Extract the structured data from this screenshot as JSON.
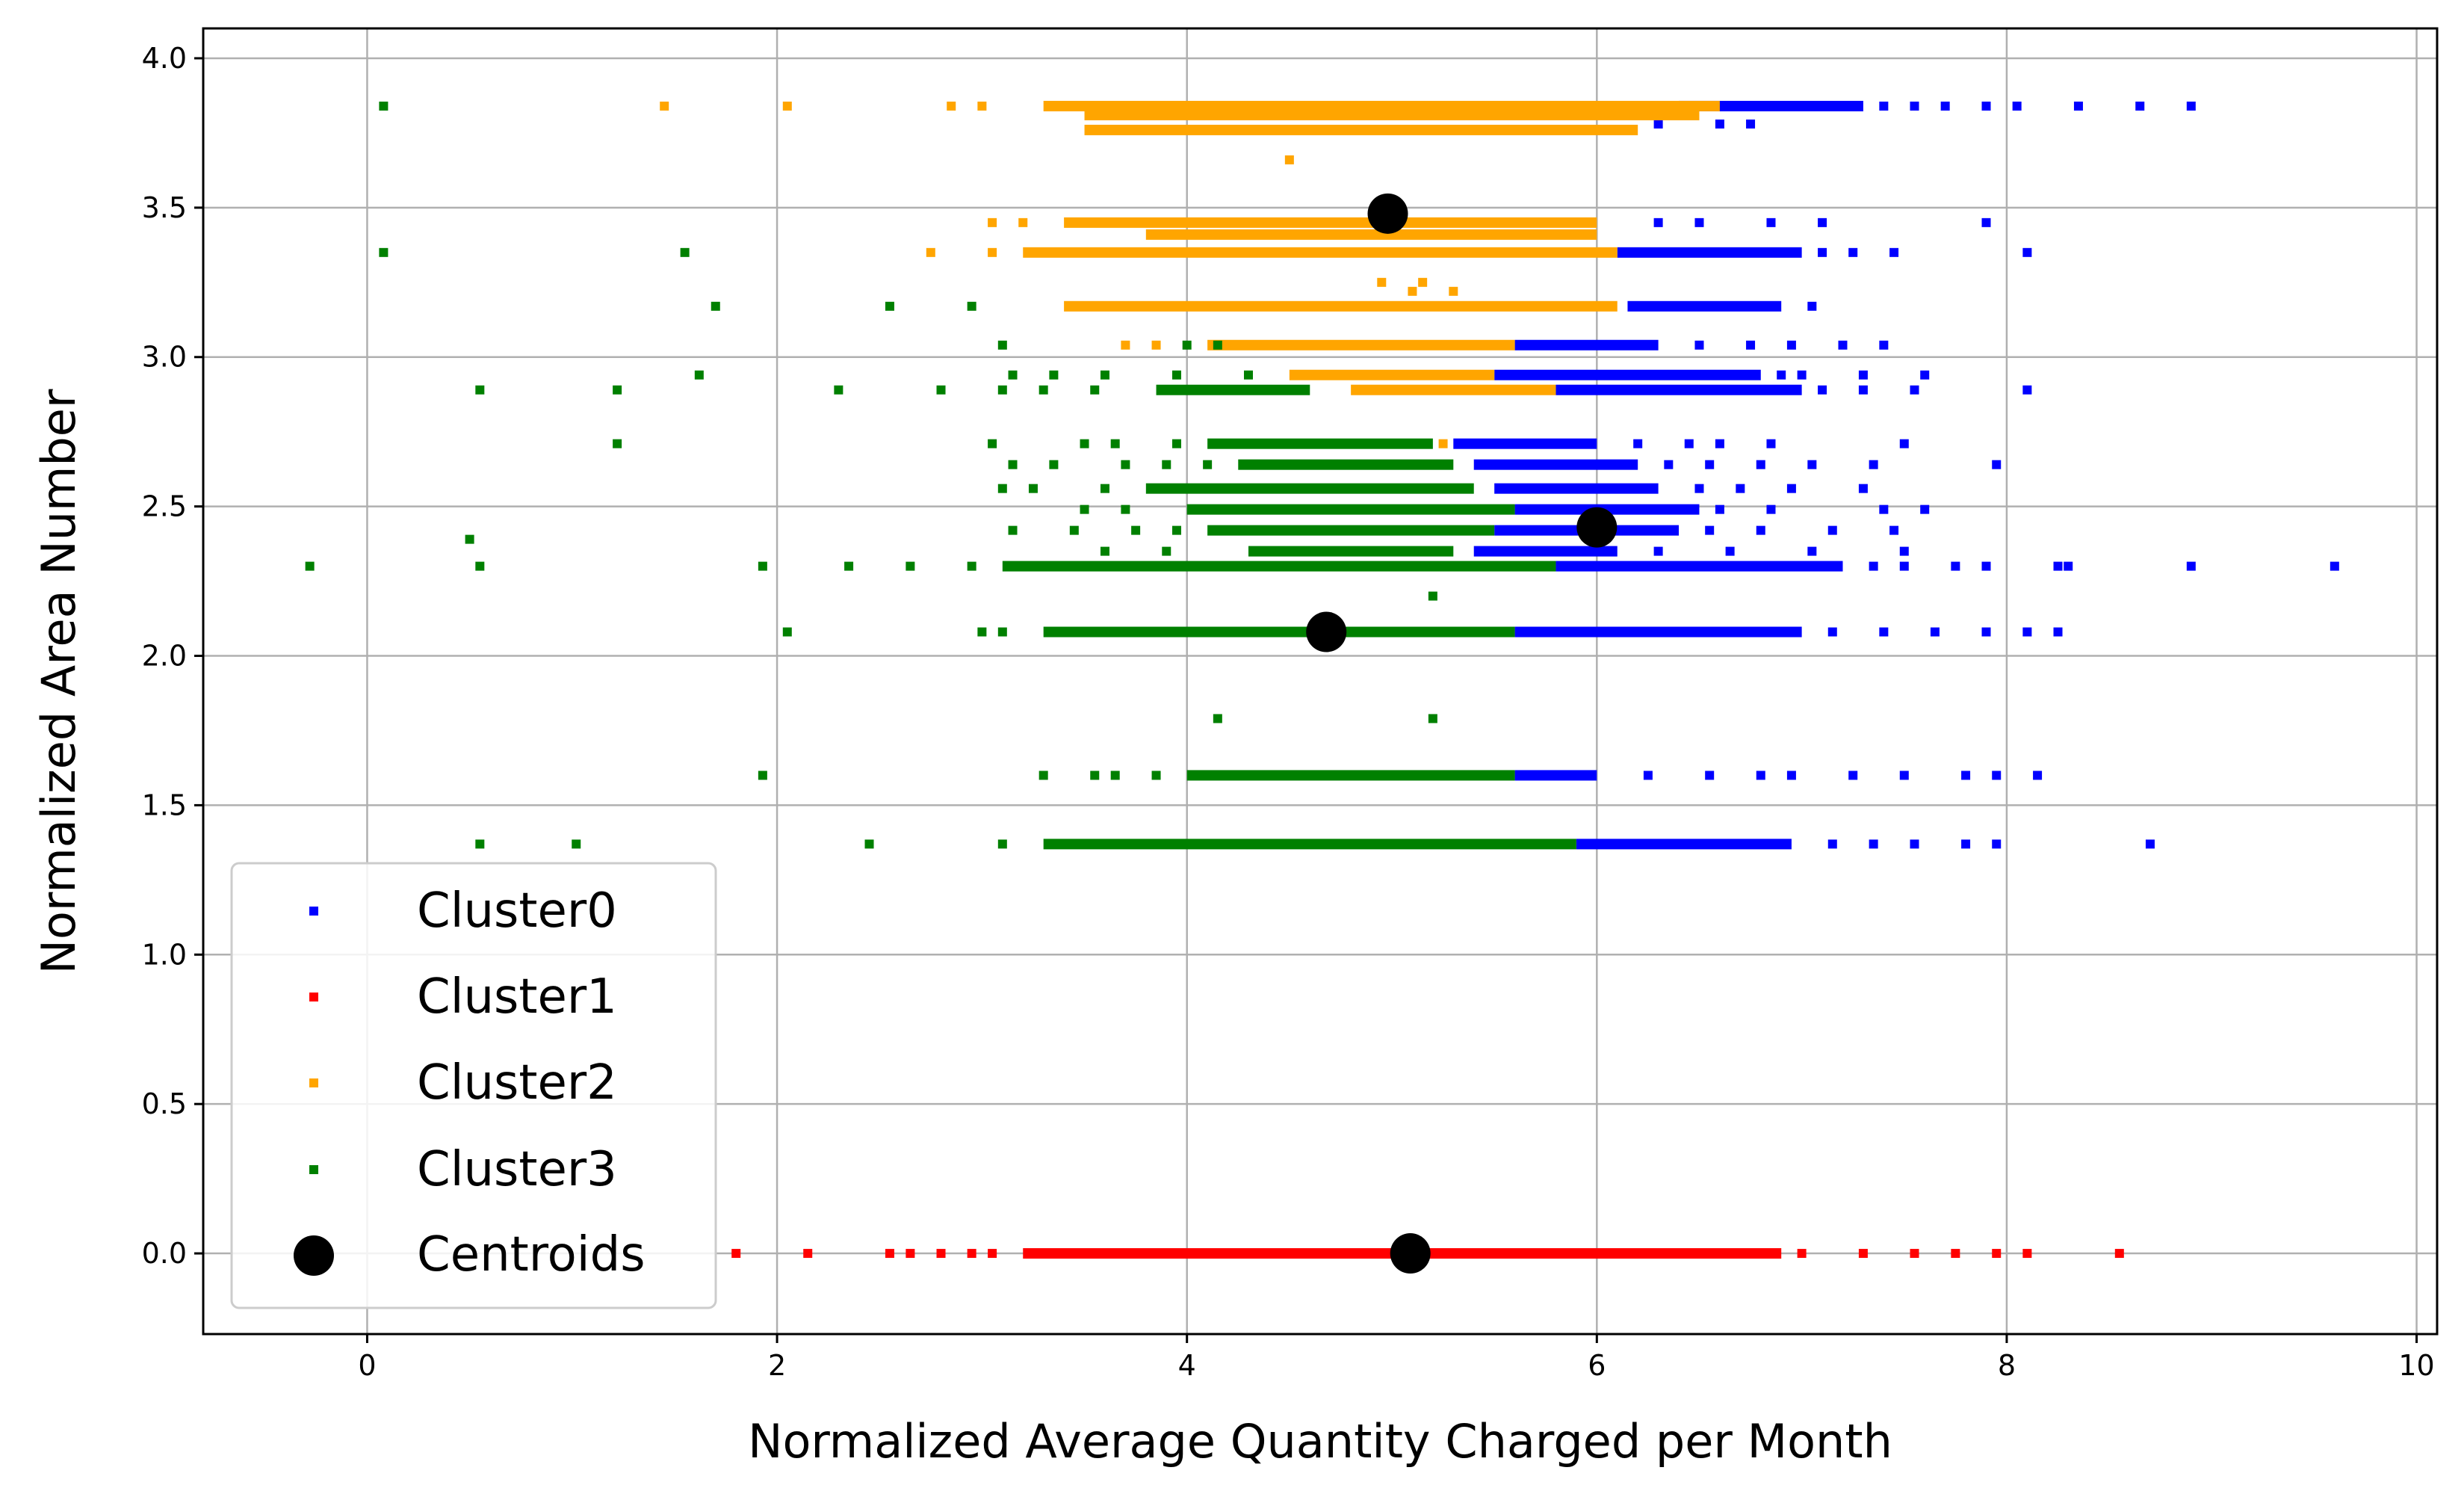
{
  "chart_data": {
    "type": "scatter",
    "title": "",
    "xlabel": "Normalized Average Quantity Charged per Month",
    "ylabel": "Normalized Area Number",
    "xlim": [
      -0.8,
      10.1
    ],
    "ylim": [
      -0.27,
      4.1
    ],
    "xticks": [
      0,
      2,
      4,
      6,
      8,
      10
    ],
    "xtick_labels": [
      "0",
      "2",
      "4",
      "6",
      "8",
      "10"
    ],
    "yticks": [
      0.0,
      0.5,
      1.0,
      1.5,
      2.0,
      2.5,
      3.0,
      3.5,
      4.0
    ],
    "ytick_labels": [
      "0.0",
      "0.5",
      "1.0",
      "1.5",
      "2.0",
      "2.5",
      "3.0",
      "3.5",
      "4.0"
    ],
    "grid": true,
    "legend_position": "lower-left",
    "series": [
      {
        "name": "Cluster0",
        "color": "#0000ff",
        "rows": [
          {
            "y": 3.84,
            "dense": [
              6.4,
              7.3
            ],
            "scatter": [
              7.4,
              7.55,
              7.7,
              7.9,
              8.05,
              8.35,
              8.65,
              8.9
            ]
          },
          {
            "y": 3.78,
            "dense": [],
            "scatter": [
              6.3,
              6.6,
              6.75
            ]
          },
          {
            "y": 3.45,
            "dense": [],
            "scatter": [
              6.3,
              6.5,
              6.85,
              7.1,
              7.9
            ]
          },
          {
            "y": 3.35,
            "dense": [
              6.1,
              7.0
            ],
            "scatter": [
              7.1,
              7.25,
              7.45,
              8.1
            ]
          },
          {
            "y": 3.17,
            "dense": [
              6.15,
              6.9
            ],
            "scatter": [
              7.05
            ]
          },
          {
            "y": 3.04,
            "dense": [
              5.6,
              6.3
            ],
            "scatter": [
              6.5,
              6.75,
              6.95,
              7.2,
              7.4
            ]
          },
          {
            "y": 2.94,
            "dense": [
              5.5,
              6.8
            ],
            "scatter": [
              6.9,
              7.0,
              7.3,
              7.6
            ]
          },
          {
            "y": 2.89,
            "dense": [
              5.8,
              7.0
            ],
            "scatter": [
              7.1,
              7.3,
              7.55,
              8.1
            ]
          },
          {
            "y": 2.71,
            "dense": [
              5.3,
              6.0
            ],
            "scatter": [
              6.2,
              6.45,
              6.6,
              6.85,
              7.5
            ]
          },
          {
            "y": 2.64,
            "dense": [
              5.4,
              6.2
            ],
            "scatter": [
              6.35,
              6.55,
              6.8,
              7.05,
              7.35,
              7.95
            ]
          },
          {
            "y": 2.56,
            "dense": [
              5.5,
              6.3
            ],
            "scatter": [
              6.5,
              6.7,
              6.95,
              7.3
            ]
          },
          {
            "y": 2.49,
            "dense": [
              5.6,
              6.5
            ],
            "scatter": [
              6.6,
              6.85,
              7.4,
              7.6
            ]
          },
          {
            "y": 2.42,
            "dense": [
              5.5,
              6.4
            ],
            "scatter": [
              6.55,
              6.8,
              7.15,
              7.45
            ]
          },
          {
            "y": 2.35,
            "dense": [
              5.4,
              6.1
            ],
            "scatter": [
              6.3,
              6.65,
              7.05,
              7.5
            ]
          },
          {
            "y": 2.3,
            "dense": [
              5.8,
              7.2
            ],
            "scatter": [
              7.35,
              7.5,
              7.75,
              7.9,
              8.25,
              8.3,
              8.9,
              9.6
            ]
          },
          {
            "y": 2.08,
            "dense": [
              5.6,
              7.0
            ],
            "scatter": [
              7.15,
              7.4,
              7.65,
              7.9,
              8.1,
              8.25
            ]
          },
          {
            "y": 1.6,
            "dense": [
              5.6,
              6.0
            ],
            "scatter": [
              6.25,
              6.55,
              6.8,
              6.95,
              7.25,
              7.5,
              7.8,
              7.95,
              8.15
            ]
          },
          {
            "y": 1.37,
            "dense": [
              5.9,
              6.95
            ],
            "scatter": [
              7.15,
              7.35,
              7.55,
              7.8,
              7.95,
              8.7
            ]
          }
        ]
      },
      {
        "name": "Cluster1",
        "color": "#ff0000",
        "rows": [
          {
            "y": 0.0,
            "dense": [
              3.2,
              6.9
            ],
            "scatter": [
              1.8,
              2.15,
              2.55,
              2.65,
              2.8,
              2.95,
              3.05,
              7.0,
              7.3,
              7.55,
              7.75,
              7.95,
              8.1,
              8.55
            ]
          }
        ]
      },
      {
        "name": "Cluster2",
        "color": "#ffa500",
        "rows": [
          {
            "y": 3.84,
            "dense": [
              3.3,
              6.6
            ],
            "scatter": [
              1.45,
              2.05,
              2.85,
              3.0
            ]
          },
          {
            "y": 3.81,
            "dense": [
              3.5,
              6.5
            ],
            "scatter": []
          },
          {
            "y": 3.76,
            "dense": [
              3.5,
              6.2
            ],
            "scatter": []
          },
          {
            "y": 3.66,
            "dense": [],
            "scatter": [
              4.5
            ]
          },
          {
            "y": 3.45,
            "dense": [
              3.4,
              6.0
            ],
            "scatter": [
              3.05,
              3.2
            ]
          },
          {
            "y": 3.41,
            "dense": [
              3.8,
              6.0
            ],
            "scatter": []
          },
          {
            "y": 3.35,
            "dense": [
              3.2,
              6.1
            ],
            "scatter": [
              2.75,
              3.05
            ]
          },
          {
            "y": 3.25,
            "dense": [],
            "scatter": [
              4.95,
              5.15
            ]
          },
          {
            "y": 3.22,
            "dense": [],
            "scatter": [
              5.1,
              5.3
            ]
          },
          {
            "y": 3.17,
            "dense": [
              3.4,
              6.1
            ],
            "scatter": []
          },
          {
            "y": 3.04,
            "dense": [
              4.1,
              5.6
            ],
            "scatter": [
              3.7,
              3.85
            ]
          },
          {
            "y": 2.94,
            "dense": [
              4.5,
              5.5
            ],
            "scatter": []
          },
          {
            "y": 2.89,
            "dense": [
              4.8,
              5.8
            ],
            "scatter": []
          },
          {
            "y": 2.71,
            "dense": [],
            "scatter": [
              5.15,
              5.25
            ]
          }
        ]
      },
      {
        "name": "Cluster3",
        "color": "#008000",
        "rows": [
          {
            "y": 3.84,
            "dense": [],
            "scatter": [
              0.08
            ]
          },
          {
            "y": 3.35,
            "dense": [],
            "scatter": [
              0.08,
              1.55
            ]
          },
          {
            "y": 3.17,
            "dense": [],
            "scatter": [
              1.7,
              2.55,
              2.95
            ]
          },
          {
            "y": 3.04,
            "dense": [],
            "scatter": [
              3.1,
              4.0,
              4.15
            ]
          },
          {
            "y": 2.94,
            "dense": [],
            "scatter": [
              1.62,
              3.15,
              3.35,
              3.6,
              3.95,
              4.3
            ]
          },
          {
            "y": 2.89,
            "dense": [
              3.85,
              4.6
            ],
            "scatter": [
              0.55,
              1.22,
              2.3,
              2.8,
              3.1,
              3.3,
              3.55
            ]
          },
          {
            "y": 2.71,
            "dense": [
              4.1,
              5.2
            ],
            "scatter": [
              1.22,
              3.05,
              3.5,
              3.65,
              3.95
            ]
          },
          {
            "y": 2.64,
            "dense": [
              4.25,
              5.3
            ],
            "scatter": [
              3.15,
              3.35,
              3.7,
              3.9,
              4.1
            ]
          },
          {
            "y": 2.56,
            "dense": [
              3.8,
              5.4
            ],
            "scatter": [
              3.1,
              3.25,
              3.6
            ]
          },
          {
            "y": 2.49,
            "dense": [
              4.0,
              5.6
            ],
            "scatter": [
              3.5,
              3.7
            ]
          },
          {
            "y": 2.42,
            "dense": [
              4.1,
              5.5
            ],
            "scatter": [
              3.15,
              3.45,
              3.75,
              3.95
            ]
          },
          {
            "y": 2.39,
            "dense": [],
            "scatter": [
              0.5
            ]
          },
          {
            "y": 2.35,
            "dense": [
              4.3,
              5.3
            ],
            "scatter": [
              3.6,
              3.9
            ]
          },
          {
            "y": 2.3,
            "dense": [
              3.1,
              5.8
            ],
            "scatter": [
              -0.28,
              0.55,
              1.93,
              2.35,
              2.65,
              2.95
            ]
          },
          {
            "y": 2.2,
            "dense": [],
            "scatter": [
              5.2
            ]
          },
          {
            "y": 2.08,
            "dense": [
              3.3,
              5.6
            ],
            "scatter": [
              2.05,
              3.0,
              3.1
            ]
          },
          {
            "y": 1.79,
            "dense": [],
            "scatter": [
              4.15,
              5.2
            ]
          },
          {
            "y": 1.6,
            "dense": [
              4.0,
              5.6
            ],
            "scatter": [
              1.93,
              3.3,
              3.55,
              3.65,
              3.85
            ]
          },
          {
            "y": 1.37,
            "dense": [
              3.3,
              5.9
            ],
            "scatter": [
              0.55,
              1.02,
              2.45,
              3.1
            ]
          }
        ]
      }
    ],
    "centroids": {
      "name": "Centroids",
      "color": "#000000",
      "points": [
        {
          "x": 4.98,
          "y": 3.48
        },
        {
          "x": 6.0,
          "y": 2.43
        },
        {
          "x": 4.68,
          "y": 2.08
        },
        {
          "x": 5.09,
          "y": 0.0
        }
      ]
    },
    "legend": [
      "Cluster0",
      "Cluster1",
      "Cluster2",
      "Cluster3",
      "Centroids"
    ]
  }
}
